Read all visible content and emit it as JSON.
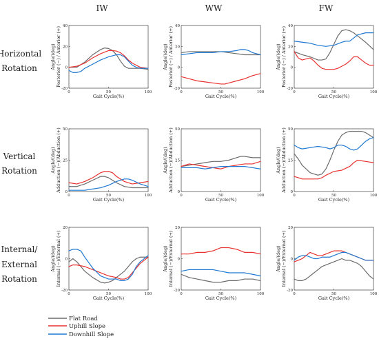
{
  "columns": [
    "IW",
    "WW",
    "FW"
  ],
  "rows": [
    {
      "lines": [
        "Horizontal",
        "Rotation"
      ],
      "ylabel_lines": [
        "Angle/(deg)",
        "Posterior (−) / Anterior (+)"
      ]
    },
    {
      "lines": [
        "Vertical",
        "Rotation"
      ],
      "ylabel_lines": [
        "Angle/(deg)",
        "Adduction (−)/Abduction (+)"
      ]
    },
    {
      "lines": [
        "Internal/",
        "External",
        "Rotation"
      ],
      "ylabel_lines": [
        "Angle/(deg)",
        "Internal (−)/External (+)"
      ]
    }
  ],
  "xlabel": "Gait Cycle(%)",
  "legend": [
    {
      "label": "Flat Road",
      "color": "#6b6b6b"
    },
    {
      "label": "Uphill Slope",
      "color": "#e8312f"
    },
    {
      "label": "Downhill Slope",
      "color": "#1f78d1"
    }
  ],
  "chart_data": [
    {
      "type": "line",
      "row": 0,
      "col": 0,
      "xlim": [
        0,
        100
      ],
      "ylim": [
        -20,
        40
      ],
      "xticks": [
        0,
        50,
        100
      ],
      "yticks": [
        -20,
        0,
        20,
        40
      ],
      "series": [
        {
          "name": "Flat Road",
          "x": [
            0,
            10,
            20,
            30,
            40,
            45,
            50,
            55,
            60,
            65,
            70,
            75,
            80,
            90,
            100
          ],
          "y": [
            0,
            0,
            5,
            12,
            17,
            18.5,
            18,
            16,
            12,
            6,
            1,
            -1,
            -1,
            -1,
            -2
          ]
        },
        {
          "name": "Uphill Slope",
          "x": [
            0,
            10,
            20,
            30,
            40,
            50,
            55,
            60,
            65,
            70,
            75,
            80,
            90,
            100
          ],
          "y": [
            0,
            1,
            4,
            9,
            13,
            16,
            16,
            15.5,
            14,
            11,
            7,
            4,
            0,
            -1
          ]
        },
        {
          "name": "Downhill Slope",
          "x": [
            0,
            5,
            10,
            15,
            20,
            30,
            40,
            50,
            60,
            65,
            70,
            75,
            80,
            85,
            90,
            100
          ],
          "y": [
            -3,
            -5,
            -5,
            -4,
            -1,
            3,
            7,
            10,
            12,
            12,
            10,
            6,
            2,
            0,
            -1,
            -1
          ]
        }
      ]
    },
    {
      "type": "line",
      "row": 0,
      "col": 1,
      "xlim": [
        0,
        100
      ],
      "ylim": [
        -20,
        40
      ],
      "xticks": [
        0,
        50,
        100
      ],
      "yticks": [
        -20,
        0,
        20,
        40
      ],
      "series": [
        {
          "name": "Flat Road",
          "x": [
            0,
            10,
            20,
            30,
            40,
            50,
            60,
            70,
            80,
            90,
            100
          ],
          "y": [
            14,
            15,
            15,
            15,
            15,
            15,
            14,
            13,
            12,
            12,
            12
          ]
        },
        {
          "name": "Uphill Slope",
          "x": [
            0,
            10,
            20,
            30,
            40,
            50,
            55,
            60,
            70,
            80,
            90,
            100
          ],
          "y": [
            -9,
            -11,
            -13,
            -14,
            -15,
            -16,
            -16,
            -15,
            -13,
            -11,
            -8,
            -6
          ]
        },
        {
          "name": "Downhill Slope",
          "x": [
            0,
            10,
            20,
            30,
            40,
            50,
            60,
            70,
            75,
            80,
            85,
            90,
            100
          ],
          "y": [
            12,
            13,
            14,
            14,
            14,
            15,
            15,
            16,
            17,
            17,
            16,
            14,
            12
          ]
        }
      ]
    },
    {
      "type": "line",
      "row": 0,
      "col": 2,
      "xlim": [
        0,
        100
      ],
      "ylim": [
        -20,
        40
      ],
      "xticks": [
        0,
        50,
        100
      ],
      "yticks": [
        -20,
        0,
        20,
        40
      ],
      "series": [
        {
          "name": "Flat Road",
          "x": [
            0,
            10,
            20,
            30,
            35,
            40,
            45,
            50,
            55,
            60,
            65,
            70,
            75,
            80,
            90,
            100
          ],
          "y": [
            15,
            12,
            10,
            7,
            7,
            8,
            14,
            22,
            30,
            35,
            36,
            35,
            33,
            30,
            24,
            17
          ]
        },
        {
          "name": "Uphill Slope",
          "x": [
            0,
            5,
            10,
            15,
            20,
            25,
            30,
            35,
            40,
            45,
            50,
            55,
            60,
            65,
            70,
            75,
            80,
            85,
            90,
            95,
            100
          ],
          "y": [
            15,
            9,
            7,
            8,
            9,
            6,
            2,
            -1,
            -2,
            -2,
            -2,
            -1,
            1,
            3,
            6,
            10,
            10,
            7,
            4,
            2,
            2
          ]
        },
        {
          "name": "Downhill Slope",
          "x": [
            0,
            10,
            20,
            30,
            40,
            50,
            60,
            65,
            70,
            75,
            80,
            85,
            90,
            95,
            100
          ],
          "y": [
            25,
            24,
            23,
            21,
            20,
            21,
            24,
            25,
            25,
            28,
            31,
            32,
            33,
            33,
            33
          ]
        }
      ]
    },
    {
      "type": "line",
      "row": 1,
      "col": 0,
      "xlim": [
        0,
        100
      ],
      "ylim": [
        0,
        50
      ],
      "xticks": [
        0,
        50,
        100
      ],
      "yticks": [
        0,
        25,
        50
      ],
      "series": [
        {
          "name": "Flat Road",
          "x": [
            0,
            10,
            20,
            30,
            40,
            45,
            50,
            60,
            70,
            80,
            90,
            100
          ],
          "y": [
            4,
            4,
            6,
            9,
            12,
            12,
            11,
            7,
            4,
            3,
            3,
            3
          ]
        },
        {
          "name": "Uphill Slope",
          "x": [
            0,
            10,
            20,
            30,
            40,
            45,
            50,
            55,
            60,
            70,
            80,
            90,
            100
          ],
          "y": [
            7,
            6,
            8,
            11,
            15,
            16,
            16,
            15,
            12,
            8,
            6,
            7,
            8
          ]
        },
        {
          "name": "Downhill Slope",
          "x": [
            0,
            10,
            20,
            30,
            40,
            50,
            60,
            65,
            70,
            75,
            80,
            90,
            100
          ],
          "y": [
            1,
            1,
            1,
            2,
            3,
            5,
            8,
            9,
            10,
            10,
            9,
            6,
            4
          ]
        }
      ]
    },
    {
      "type": "line",
      "row": 1,
      "col": 1,
      "xlim": [
        0,
        100
      ],
      "ylim": [
        0,
        50
      ],
      "xticks": [
        0,
        50,
        100
      ],
      "yticks": [
        0,
        25,
        50
      ],
      "series": [
        {
          "name": "Flat Road",
          "x": [
            0,
            10,
            20,
            30,
            40,
            50,
            60,
            70,
            75,
            80,
            90,
            100
          ],
          "y": [
            20,
            21,
            22,
            23,
            24,
            24,
            25,
            27,
            28,
            28,
            27,
            27
          ]
        },
        {
          "name": "Uphill Slope",
          "x": [
            0,
            10,
            20,
            30,
            40,
            50,
            55,
            60,
            70,
            80,
            90,
            100
          ],
          "y": [
            20,
            22,
            21,
            20,
            19,
            18,
            19,
            20,
            21,
            22,
            22,
            24
          ]
        },
        {
          "name": "Downhill Slope",
          "x": [
            0,
            10,
            20,
            30,
            40,
            50,
            60,
            70,
            80,
            90,
            100
          ],
          "y": [
            19,
            19,
            19,
            18,
            19,
            20,
            20,
            20,
            20,
            19,
            18
          ]
        }
      ]
    },
    {
      "type": "line",
      "row": 1,
      "col": 2,
      "xlim": [
        0,
        100
      ],
      "ylim": [
        0,
        50
      ],
      "xticks": [
        0,
        50,
        100
      ],
      "yticks": [
        0,
        25,
        50
      ],
      "series": [
        {
          "name": "Flat Road",
          "x": [
            0,
            5,
            10,
            15,
            20,
            25,
            30,
            35,
            40,
            45,
            50,
            55,
            60,
            65,
            70,
            75,
            80,
            85,
            90,
            95,
            100
          ],
          "y": [
            30,
            26,
            21,
            18,
            15,
            14,
            13,
            14,
            18,
            25,
            33,
            40,
            45,
            47,
            48,
            48,
            48,
            48,
            47,
            45,
            43
          ]
        },
        {
          "name": "Uphill Slope",
          "x": [
            0,
            5,
            10,
            20,
            30,
            35,
            40,
            50,
            60,
            70,
            75,
            80,
            90,
            100
          ],
          "y": [
            12,
            11,
            10,
            10,
            10,
            11,
            13,
            16,
            17,
            20,
            23,
            25,
            24,
            23
          ]
        },
        {
          "name": "Downhill Slope",
          "x": [
            0,
            5,
            10,
            20,
            30,
            40,
            45,
            50,
            55,
            60,
            65,
            70,
            75,
            80,
            85,
            90,
            95,
            100
          ],
          "y": [
            37,
            35,
            34,
            35,
            36,
            35,
            34,
            35,
            37,
            37,
            36,
            34,
            33,
            34,
            37,
            40,
            42,
            43
          ]
        }
      ]
    },
    {
      "type": "line",
      "row": 2,
      "col": 0,
      "xlim": [
        0,
        100
      ],
      "ylim": [
        -20,
        20
      ],
      "xticks": [
        0,
        50,
        100
      ],
      "yticks": [
        -20,
        0,
        20
      ],
      "series": [
        {
          "name": "Flat Road",
          "x": [
            0,
            5,
            10,
            15,
            20,
            30,
            40,
            45,
            50,
            55,
            60,
            70,
            75,
            80,
            85,
            90,
            100
          ],
          "y": [
            -2,
            0,
            -2,
            -5,
            -8,
            -12,
            -15,
            -15.5,
            -15,
            -14,
            -12,
            -8,
            -5,
            -2,
            0,
            1,
            1
          ]
        },
        {
          "name": "Uphill Slope",
          "x": [
            0,
            5,
            10,
            20,
            30,
            40,
            50,
            60,
            65,
            70,
            75,
            80,
            90,
            100
          ],
          "y": [
            -5,
            -4,
            -4,
            -5,
            -7,
            -9,
            -11,
            -12,
            -13,
            -13,
            -12,
            -9,
            -3,
            1
          ]
        },
        {
          "name": "Downhill Slope",
          "x": [
            0,
            5,
            10,
            15,
            20,
            30,
            40,
            50,
            60,
            65,
            70,
            75,
            80,
            85,
            90,
            100
          ],
          "y": [
            5,
            6,
            6,
            5,
            1,
            -6,
            -11,
            -13,
            -13,
            -14,
            -14,
            -13,
            -10,
            -5,
            -2,
            2
          ]
        }
      ]
    },
    {
      "type": "line",
      "row": 2,
      "col": 1,
      "xlim": [
        0,
        100
      ],
      "ylim": [
        -20,
        20
      ],
      "xticks": [
        0,
        50,
        100
      ],
      "yticks": [
        -20,
        0,
        20
      ],
      "series": [
        {
          "name": "Flat Road",
          "x": [
            0,
            5,
            10,
            20,
            30,
            40,
            50,
            60,
            70,
            80,
            90,
            100
          ],
          "y": [
            -10,
            -11,
            -12,
            -13,
            -14,
            -15,
            -15,
            -14,
            -14,
            -13,
            -13,
            -14
          ]
        },
        {
          "name": "Uphill Slope",
          "x": [
            0,
            10,
            20,
            30,
            40,
            50,
            55,
            60,
            70,
            80,
            90,
            100
          ],
          "y": [
            3,
            3,
            4,
            4,
            5,
            7,
            7,
            7,
            6,
            4,
            4,
            3
          ]
        },
        {
          "name": "Downhill Slope",
          "x": [
            0,
            10,
            20,
            30,
            40,
            50,
            60,
            70,
            80,
            90,
            100
          ],
          "y": [
            -8,
            -7,
            -7,
            -7,
            -7,
            -8,
            -9,
            -9,
            -9,
            -10,
            -11
          ]
        }
      ]
    },
    {
      "type": "line",
      "row": 2,
      "col": 2,
      "xlim": [
        0,
        100
      ],
      "ylim": [
        -20,
        20
      ],
      "xticks": [
        0,
        50,
        100
      ],
      "yticks": [
        -20,
        0,
        20
      ],
      "series": [
        {
          "name": "Flat Road",
          "x": [
            0,
            5,
            10,
            15,
            20,
            25,
            30,
            35,
            40,
            45,
            50,
            55,
            60,
            65,
            70,
            75,
            80,
            85,
            90,
            95,
            100
          ],
          "y": [
            -13,
            -14,
            -14,
            -13,
            -11,
            -9,
            -7,
            -5,
            -4,
            -3,
            -2,
            -1,
            0,
            -1,
            -1,
            -2,
            -3,
            -5,
            -8,
            -11,
            -13
          ]
        },
        {
          "name": "Uphill Slope",
          "x": [
            0,
            5,
            10,
            15,
            20,
            25,
            30,
            35,
            40,
            45,
            50,
            55,
            60,
            65,
            70,
            75,
            80,
            85,
            90,
            95,
            100
          ],
          "y": [
            -2,
            -1,
            0,
            2,
            4,
            3,
            2,
            2,
            3,
            4,
            5,
            5,
            5,
            4,
            3,
            2,
            1,
            0,
            -1,
            -1,
            -1
          ]
        },
        {
          "name": "Downhill Slope",
          "x": [
            0,
            5,
            10,
            15,
            20,
            25,
            30,
            35,
            40,
            45,
            50,
            55,
            60,
            65,
            70,
            75,
            80,
            85,
            90,
            95,
            100
          ],
          "y": [
            -1,
            1,
            2,
            2,
            1,
            0,
            0,
            1,
            1,
            1,
            2,
            3,
            4,
            4,
            3,
            2,
            1,
            0,
            -1,
            -1,
            -1
          ]
        }
      ]
    }
  ]
}
